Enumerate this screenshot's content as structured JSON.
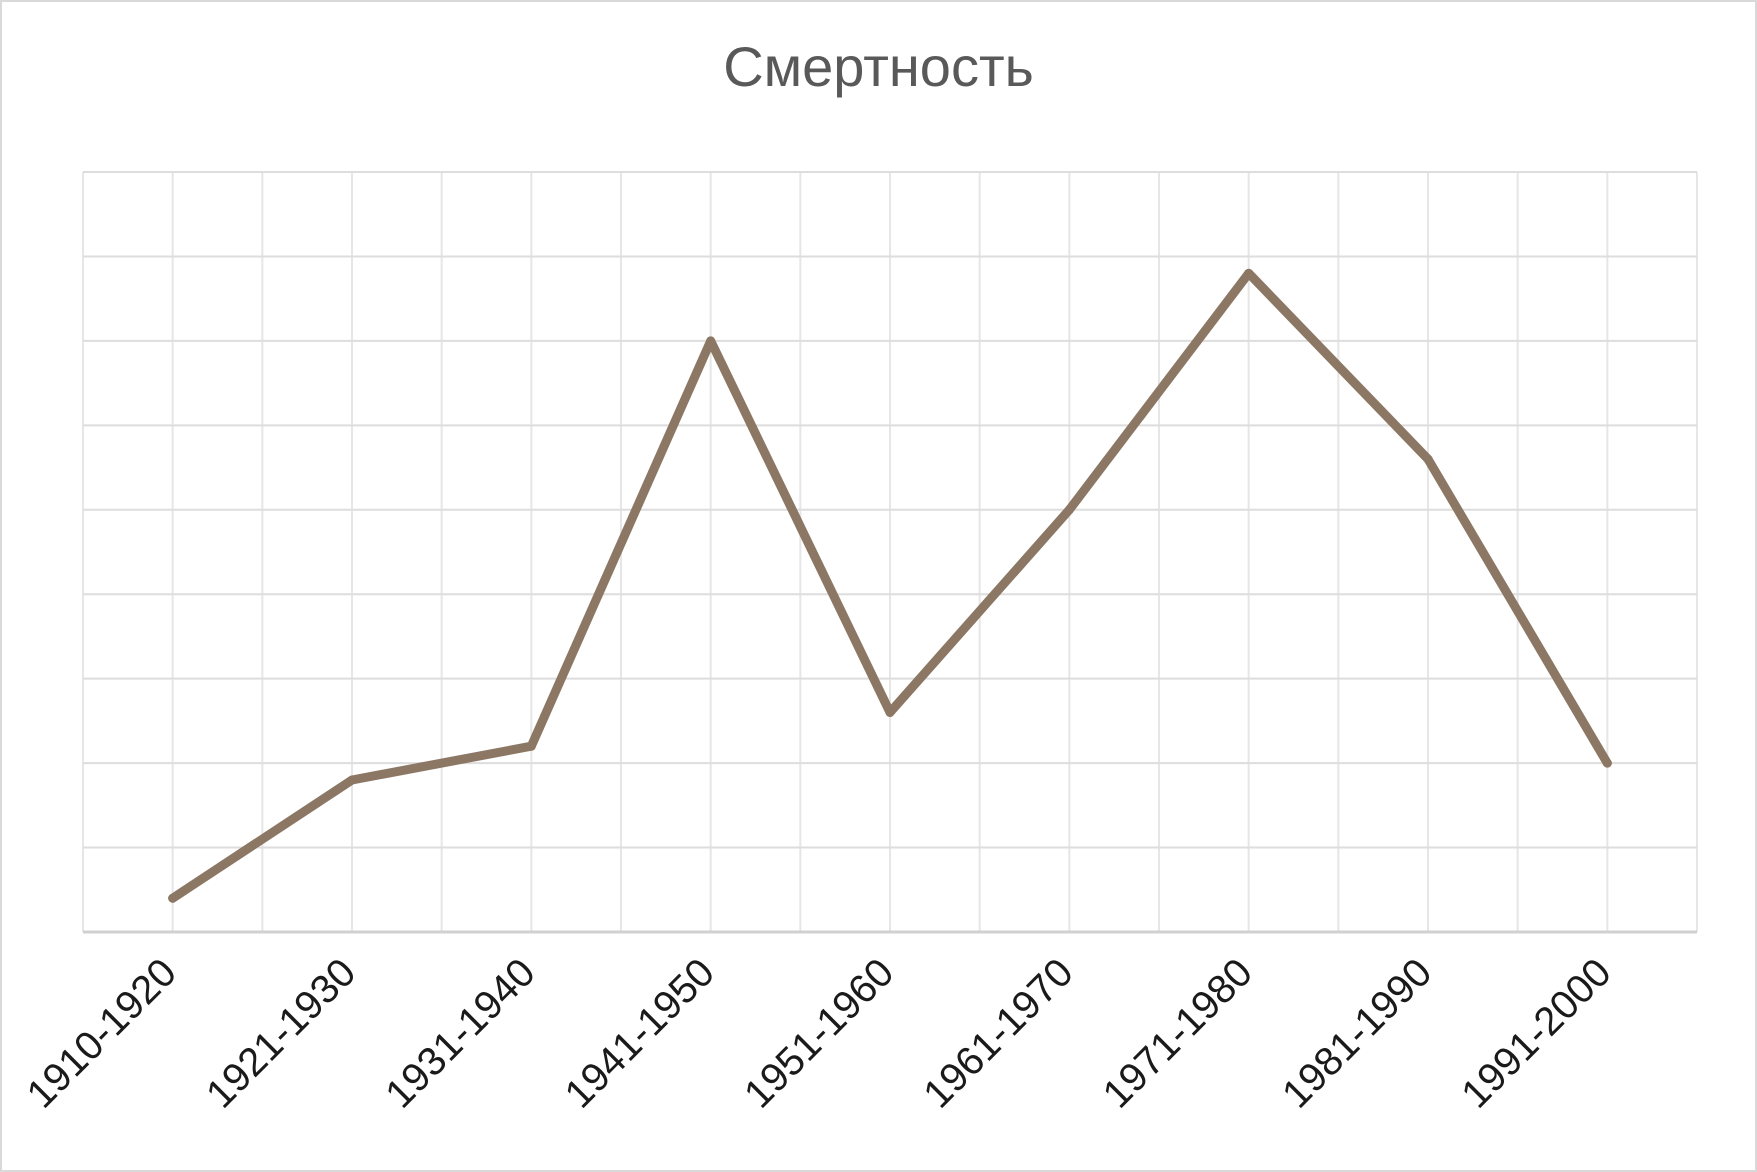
{
  "chart_data": {
    "type": "line",
    "title": "Смертность",
    "xlabel": "",
    "ylabel": "",
    "categories": [
      "1910-1920",
      "1921-1930",
      "1931-1940",
      "1941-1950",
      "1951-1960",
      "1961-1970",
      "1971-1980",
      "1981-1990",
      "1991-2000"
    ],
    "series": [
      {
        "values": [
          0.4,
          1.8,
          2.2,
          7.0,
          2.6,
          5.0,
          7.8,
          5.6,
          2.0
        ],
        "color": "#8c7764"
      }
    ],
    "ylim": [
      0,
      9
    ],
    "y_gridlines": 9,
    "x_gridlines": "between-and-on-categories",
    "grid": true,
    "legend": "none",
    "y_tick_labels_visible": false
  }
}
